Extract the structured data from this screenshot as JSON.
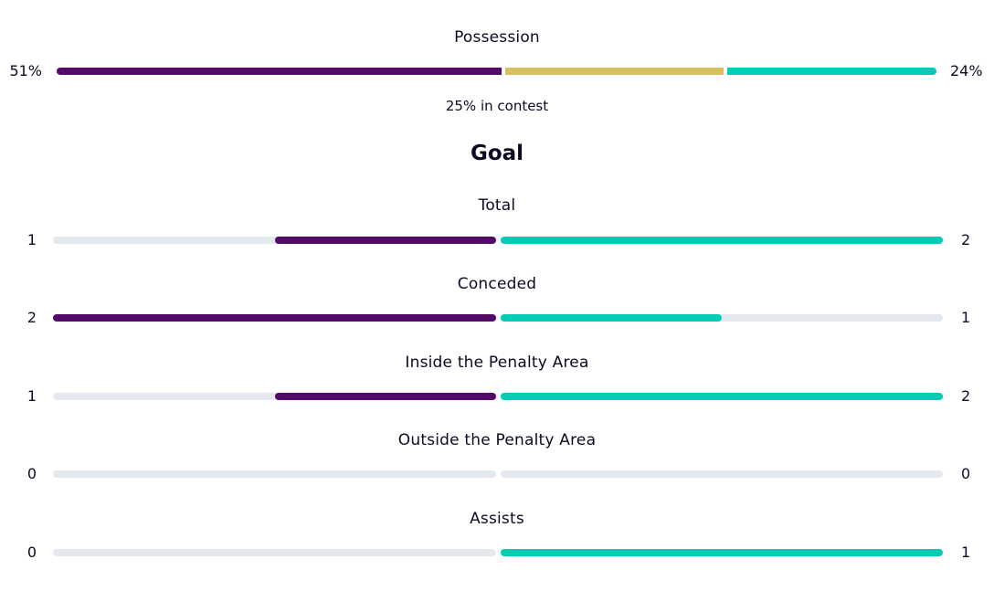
{
  "possession": {
    "title": "Possession",
    "home_value": "51%",
    "away_value": "24%",
    "contest_text": "25% in contest",
    "home_pct": 51,
    "contest_pct": 25,
    "away_pct": 24
  },
  "section_title": "Goal",
  "colors": {
    "home": "#520b66",
    "away": "#04cbb3",
    "contest": "#d6c060",
    "track": "#e4e8ef"
  },
  "stats": [
    {
      "label": "Total",
      "home": "1",
      "away": "2"
    },
    {
      "label": "Conceded",
      "home": "2",
      "away": "1"
    },
    {
      "label": "Inside the Penalty Area",
      "home": "1",
      "away": "2"
    },
    {
      "label": "Outside the Penalty Area",
      "home": "0",
      "away": "0"
    },
    {
      "label": "Assists",
      "home": "0",
      "away": "1"
    }
  ]
}
